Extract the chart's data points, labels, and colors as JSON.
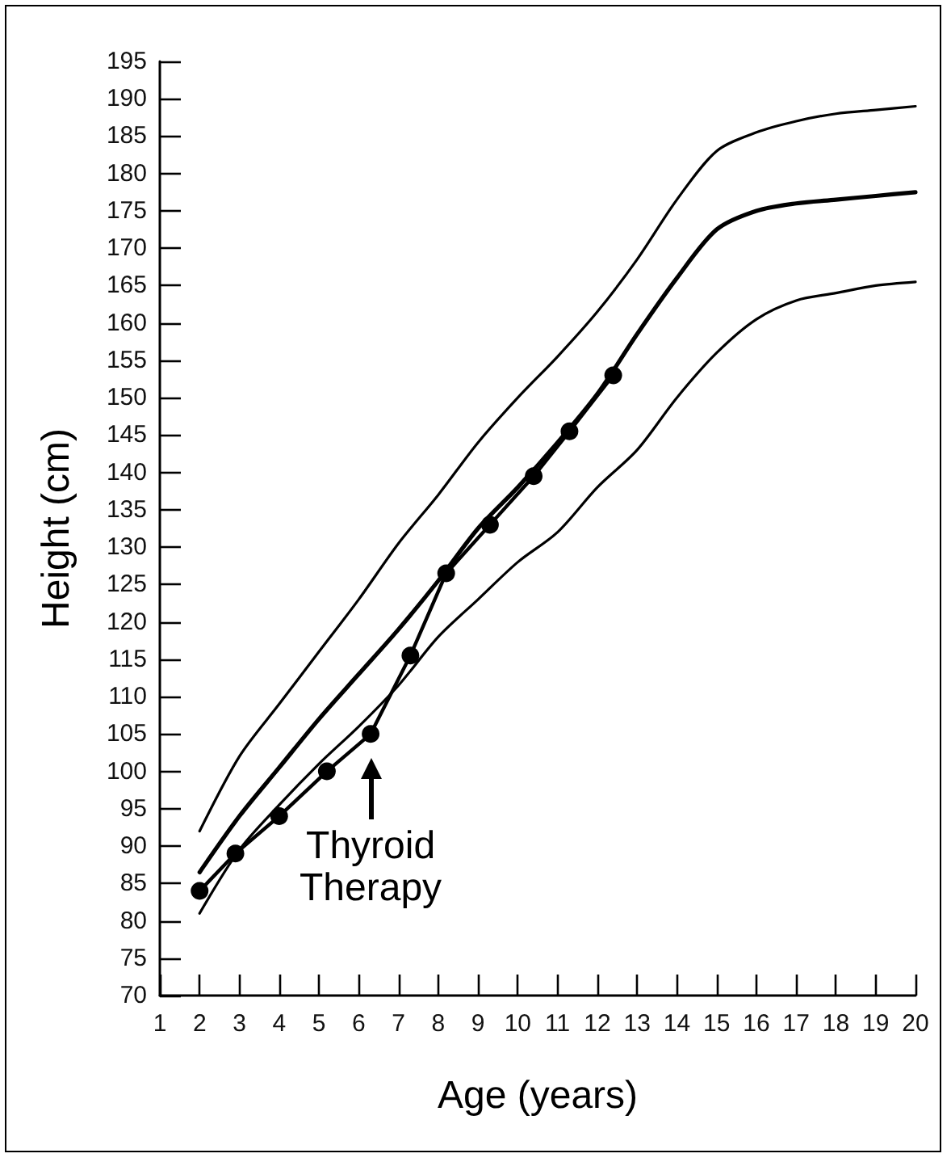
{
  "chart_data": {
    "type": "line",
    "xlabel": "Age (years)",
    "ylabel": "Height (cm)",
    "xlim": [
      1,
      20
    ],
    "xticks": [
      1,
      2,
      3,
      4,
      5,
      6,
      7,
      8,
      9,
      10,
      11,
      12,
      13,
      14,
      15,
      16,
      17,
      18,
      19,
      20
    ],
    "ylim": [
      70,
      195
    ],
    "yticks": [
      70,
      75,
      80,
      85,
      90,
      95,
      100,
      105,
      110,
      115,
      120,
      125,
      130,
      135,
      140,
      145,
      150,
      155,
      160,
      165,
      170,
      175,
      180,
      185,
      190,
      195
    ],
    "grid": false,
    "annotations": [
      {
        "text": "Thyroid Therapy",
        "x": 6.3,
        "y": 105
      }
    ],
    "series": [
      {
        "color": "#000000",
        "marker": "none",
        "x": [
          2,
          3,
          4,
          5,
          6,
          7,
          8,
          9,
          10,
          11,
          12,
          13,
          14,
          15,
          16,
          17,
          18,
          19,
          20
        ],
        "values": [
          92,
          102,
          109,
          116,
          123,
          130.5,
          137,
          144,
          150,
          155.5,
          161.5,
          168.5,
          176.5,
          183,
          185.5,
          187,
          188,
          188.5,
          189
        ]
      },
      {
        "color": "#000000",
        "marker": "none",
        "x": [
          2,
          3,
          4,
          5,
          6,
          7,
          8,
          9,
          10,
          11,
          12,
          13,
          14,
          15,
          16,
          17,
          18,
          19,
          20
        ],
        "values": [
          86.5,
          94,
          100.5,
          107,
          113,
          119,
          125.5,
          132.5,
          138,
          144,
          150.5,
          158.5,
          166,
          172.5,
          175,
          176,
          176.5,
          177,
          177.5
        ]
      },
      {
        "color": "#000000",
        "marker": "none",
        "x": [
          2,
          3,
          4,
          5,
          6,
          7,
          8,
          9,
          10,
          11,
          12,
          13,
          14,
          15,
          16,
          17,
          18,
          19,
          20
        ],
        "values": [
          81,
          89.5,
          95.5,
          101,
          106,
          111.5,
          118,
          123,
          128,
          132,
          138,
          143,
          150,
          156,
          160.5,
          163,
          164,
          165,
          165.5
        ]
      },
      {
        "color": "#000000",
        "marker": "circle",
        "x": [
          2,
          2.9,
          4,
          5.2,
          6.3,
          7.3,
          8.2,
          9.3,
          10.4,
          11.3,
          12.4
        ],
        "values": [
          84,
          89,
          94,
          100,
          105,
          115.5,
          126.5,
          133,
          139.5,
          145.5,
          153
        ]
      }
    ]
  }
}
